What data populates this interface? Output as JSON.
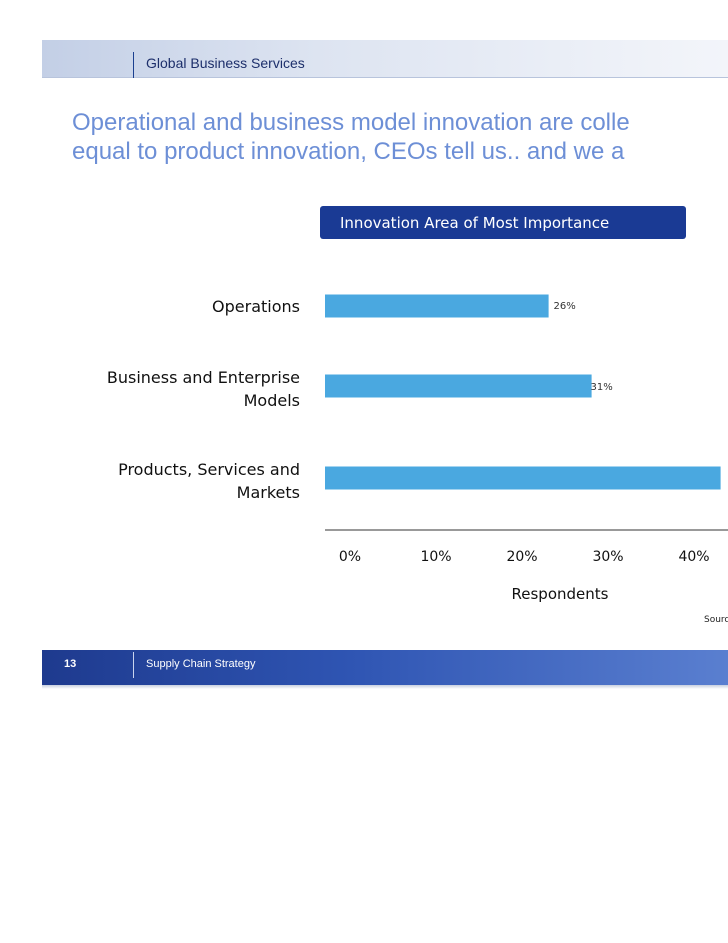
{
  "header": {
    "title": "Global Business Services"
  },
  "slide": {
    "title_line1": "Operational and business model innovation are colle",
    "title_line2": "equal to product innovation, CEOs tell us.. and we a"
  },
  "chart_data": {
    "type": "bar",
    "orientation": "horizontal",
    "title": "Innovation Area of Most Importance",
    "categories": [
      "Operations",
      "Business and Enterprise\nModels",
      "Products, Services and\nMarkets"
    ],
    "values": [
      26,
      31,
      46
    ],
    "data_labels": [
      "26%",
      "31%",
      ""
    ],
    "xlabel": "Respondents",
    "ylabel": "",
    "xlim": [
      0,
      50
    ],
    "x_ticks": [
      "0%",
      "10%",
      "20%",
      "30%",
      "40%"
    ],
    "bar_color": "#4aa8e0",
    "grid": false,
    "legend": "none"
  },
  "source": {
    "text": "Sourc"
  },
  "footer": {
    "page_number": "13",
    "text": "Supply Chain Strategy"
  },
  "colors": {
    "title_blue": "#6d8fd6",
    "chart_title_bg": "#1a3a94",
    "footer_blue": "#1e3a8e"
  }
}
